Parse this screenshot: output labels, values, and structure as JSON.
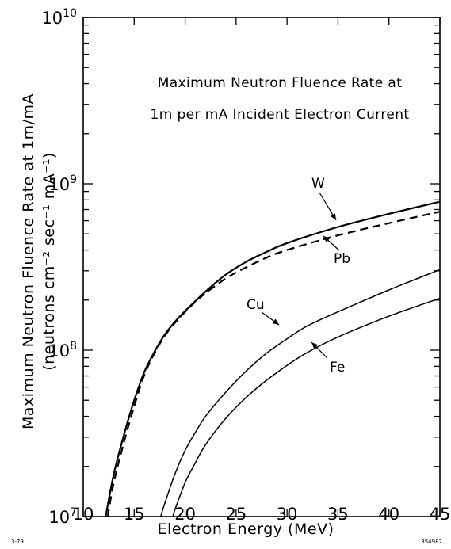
{
  "chart_data": {
    "type": "line",
    "title_lines": [
      "Maximum Neutron Fluence Rate at",
      "1m per mA Incident Electron Current"
    ],
    "xlabel": "Electron Energy   (MeV)",
    "ylabel_lines": [
      "Maximum Neutron Fluence Rate at 1m/mA",
      "(neutrons cm⁻² sec⁻¹ mA⁻¹)"
    ],
    "xlim": [
      10,
      45
    ],
    "ylim": [
      10000000,
      10000000000
    ],
    "yscale": "log",
    "x_ticks": [
      "10",
      "15",
      "20",
      "25",
      "30",
      "35",
      "40",
      "45"
    ],
    "y_ticks": [
      {
        "base": "10",
        "exp": "7"
      },
      {
        "base": "10",
        "exp": "8"
      },
      {
        "base": "10",
        "exp": "9"
      },
      {
        "base": "10",
        "exp": "10"
      }
    ],
    "series": [
      {
        "name": "W",
        "style": "solid",
        "x": [
          12.2,
          13,
          14,
          15,
          16,
          17,
          18,
          19,
          20,
          21,
          22,
          24,
          26,
          28,
          30,
          35,
          40,
          45
        ],
        "y": [
          10000000,
          18000000,
          31000000,
          50000000,
          74000000,
          98000000,
          124000000,
          148000000,
          172000000,
          197000000,
          225000000,
          285000000,
          340000000,
          390000000,
          440000000,
          550000000,
          660000000,
          780000000
        ]
      },
      {
        "name": "Pb",
        "style": "dashed",
        "x": [
          12.4,
          13,
          14,
          15,
          16,
          17,
          18,
          19,
          20,
          21,
          22,
          24,
          26,
          28,
          30,
          35,
          40,
          45
        ],
        "y": [
          10000000,
          16000000,
          28000000,
          46000000,
          71000000,
          96000000,
          122000000,
          146000000,
          170000000,
          195000000,
          220000000,
          270000000,
          315000000,
          360000000,
          400000000,
          490000000,
          580000000,
          680000000
        ]
      },
      {
        "name": "Cu",
        "style": "solid",
        "x": [
          17.6,
          18,
          19,
          20,
          21,
          22,
          24,
          26,
          28,
          30,
          32,
          35,
          40,
          45
        ],
        "y": [
          10000000,
          12000000,
          18000000,
          25000000,
          32000000,
          40000000,
          56000000,
          75000000,
          96000000,
          117000000,
          140000000,
          170000000,
          230000000,
          305000000
        ]
      },
      {
        "name": "Fe",
        "style": "solid",
        "x": [
          18.8,
          19,
          20,
          21,
          22,
          24,
          26,
          28,
          30,
          32,
          35,
          40,
          45
        ],
        "y": [
          10000000,
          11000000,
          16000000,
          21000000,
          27000000,
          39000000,
          52000000,
          66000000,
          81000000,
          97000000,
          120000000,
          160000000,
          205000000
        ]
      }
    ],
    "labels": [
      {
        "text": "W",
        "series": "W"
      },
      {
        "text": "Pb",
        "series": "Pb"
      },
      {
        "text": "Cu",
        "series": "Cu"
      },
      {
        "text": "Fe",
        "series": "Fe"
      }
    ],
    "corner_left": "3-79",
    "corner_right": "354987"
  }
}
